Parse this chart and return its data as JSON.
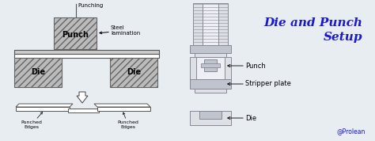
{
  "bg_color": "#e8edf2",
  "title_line1": "Die and Punch",
  "title_line2": "Setup",
  "title_color": "#1a1acc",
  "title_fontsize": 11,
  "prolean_text": "@Prolean",
  "prolean_color": "#1a1acc",
  "hatch_pattern": "////",
  "labels": {
    "punching": "Punching",
    "punch": "Punch",
    "die": "Die",
    "steel_lam": "Steel\nlamination",
    "punched_edges_left": "Punched\nEdges",
    "punched_edges_right": "Punched\nEdges",
    "punch_right": "Punch",
    "stripper": "Stripper plate",
    "die_right": "Die"
  },
  "colors": {
    "hatch_fill": "#bbbbbb",
    "hatch_edge": "#666666",
    "plate_fill": "#cccccc",
    "plate_edge": "#555555",
    "arrow": "#555555",
    "line": "#555555",
    "assembly_fill": "#dde0e5",
    "assembly_edge": "#888899",
    "assembly_inner": "#eeeef5",
    "assembly_dark": "#c0c4cc"
  }
}
